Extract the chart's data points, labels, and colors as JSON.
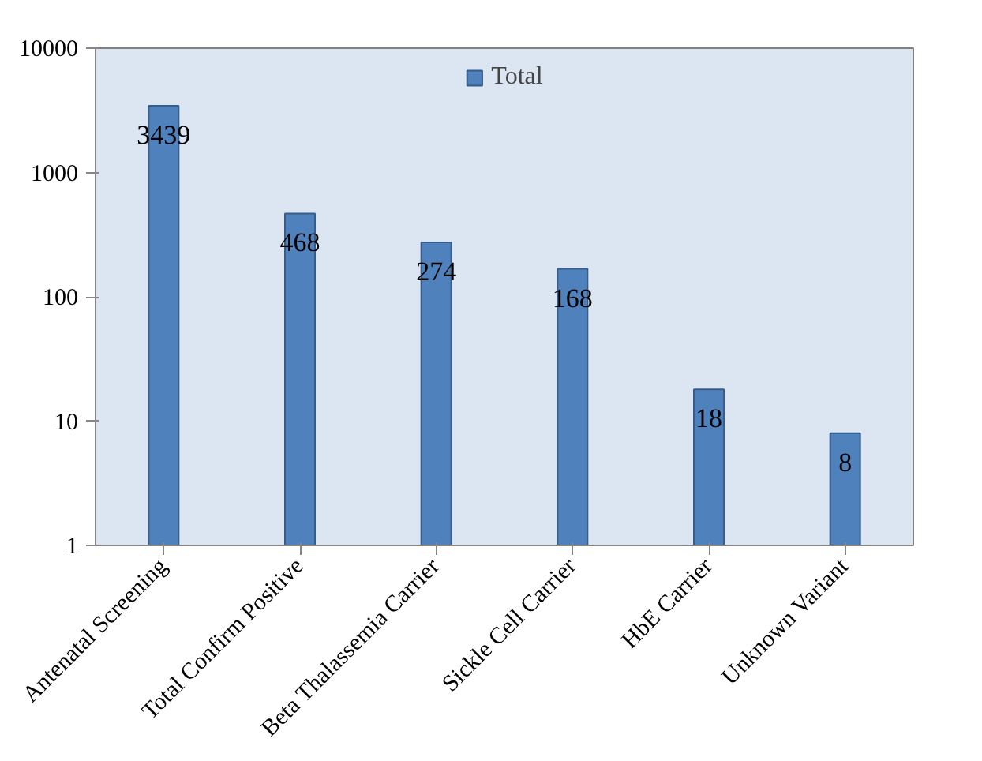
{
  "chart_data": {
    "type": "bar",
    "categories": [
      "Antenatal Screening",
      "Total Confirm Positive",
      "Beta Thalassemia Carrier",
      "Sickle Cell Carrier",
      "HbE Carrier",
      "Unknown Variant"
    ],
    "series": [
      {
        "name": "Total",
        "color": "#4f81bd",
        "values": [
          3439,
          468,
          274,
          168,
          18,
          8
        ]
      }
    ],
    "log": "y",
    "ylim": [
      1,
      10000
    ],
    "yticks": [
      1,
      10,
      100,
      1000,
      10000
    ],
    "data_labels": true,
    "grid": false,
    "legend": "top"
  }
}
